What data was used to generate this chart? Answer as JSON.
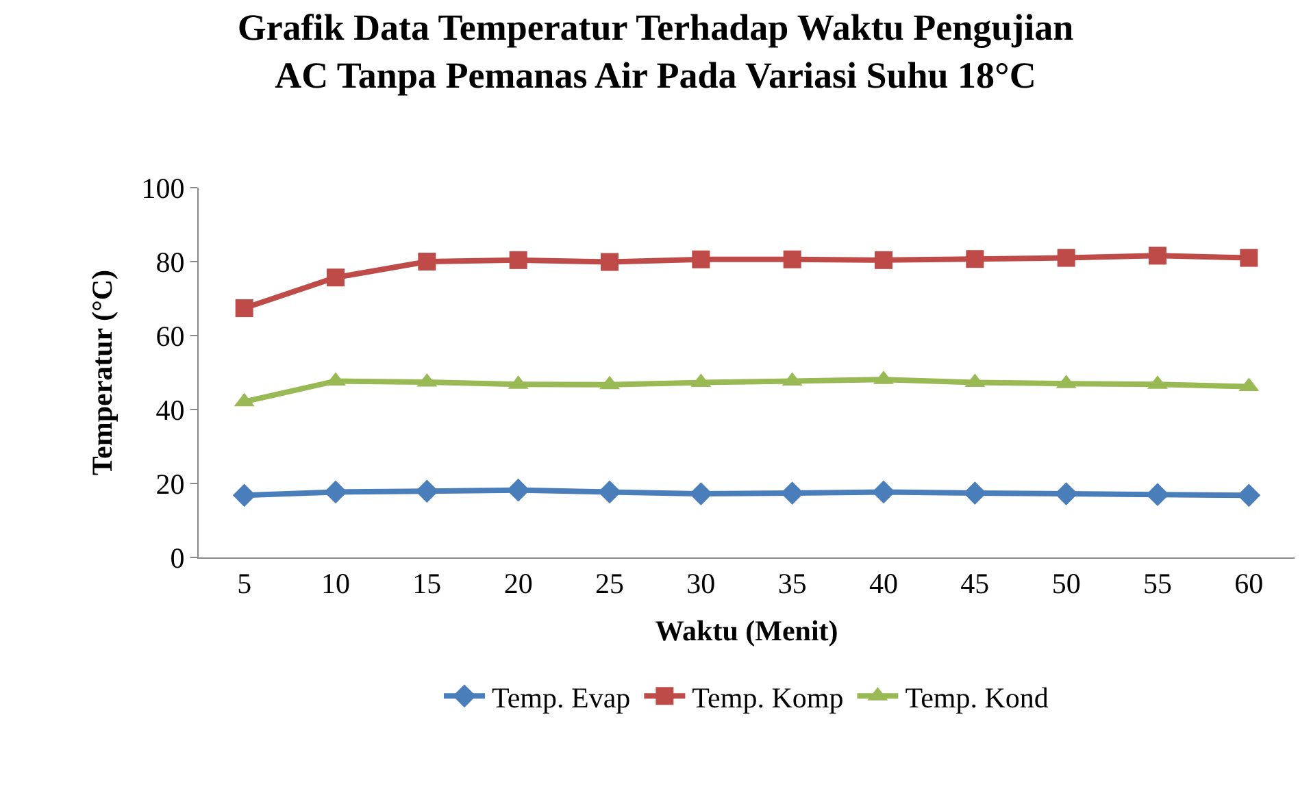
{
  "chart_data": {
    "type": "line",
    "title": "Grafik Data Temperatur Terhadap Waktu Pengujian\nAC Tanpa Pemanas Air Pada Variasi Suhu 18°C",
    "xlabel": "Waktu (Menit)",
    "ylabel": "Temperatur (°C)",
    "categories": [
      "5",
      "10",
      "15",
      "20",
      "25",
      "30",
      "35",
      "40",
      "45",
      "50",
      "55",
      "60"
    ],
    "series": [
      {
        "name": "Temp. Evap",
        "color": "#4a7ebb",
        "marker": "diamond",
        "values": [
          16.8,
          17.7,
          17.9,
          18.2,
          17.7,
          17.2,
          17.4,
          17.7,
          17.4,
          17.2,
          17.0,
          16.8
        ]
      },
      {
        "name": "Temp. Komp",
        "color": "#be4b48",
        "marker": "square",
        "values": [
          67.4,
          75.7,
          80.0,
          80.4,
          79.9,
          80.6,
          80.6,
          80.4,
          80.7,
          81.0,
          81.6,
          81.0
        ]
      },
      {
        "name": "Temp. Kond",
        "color": "#98b954",
        "marker": "triangle",
        "values": [
          42.1,
          47.7,
          47.4,
          46.8,
          46.7,
          47.3,
          47.7,
          48.1,
          47.3,
          47.0,
          46.8,
          46.2
        ]
      }
    ],
    "ylim": [
      0,
      100
    ],
    "yticks": [
      0,
      20,
      40,
      60,
      80,
      100
    ],
    "legend": "bottom",
    "line_style": "solid"
  }
}
